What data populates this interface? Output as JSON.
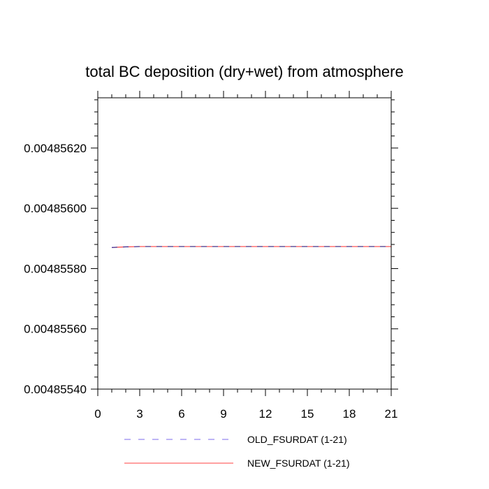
{
  "chart_data": {
    "type": "line",
    "title": "total BC deposition (dry+wet) from atmosphere",
    "xlabel": "",
    "ylabel": "",
    "xlim": [
      0,
      21
    ],
    "ylim": [
      0.0048554,
      0.0048563667
    ],
    "x_ticks": [
      0,
      3,
      6,
      9,
      12,
      15,
      18,
      21
    ],
    "x_tick_labels": [
      "0",
      "3",
      "6",
      "9",
      "12",
      "15",
      "18",
      "21"
    ],
    "y_ticks": [
      0.0048554,
      0.0048556,
      0.0048558,
      0.004856,
      0.0048562
    ],
    "y_tick_labels": [
      "0.00485540",
      "0.00485560",
      "0.00485580",
      "0.00485600",
      "0.00485620"
    ],
    "grid": false,
    "legend_position": "bottom",
    "series": [
      {
        "name": "OLD_FSURDAT (1-21)",
        "color": "#7b68ee",
        "dash": "dashed",
        "x": [
          1,
          2,
          3,
          4,
          5,
          6,
          7,
          8,
          9,
          10,
          11,
          12,
          13,
          14,
          15,
          16,
          17,
          18,
          19,
          20,
          21
        ],
        "values": [
          0.00485587,
          0.004855872,
          0.004855873,
          0.004855873,
          0.004855873,
          0.004855873,
          0.004855873,
          0.004855873,
          0.004855873,
          0.004855873,
          0.004855873,
          0.004855873,
          0.004855873,
          0.004855873,
          0.004855873,
          0.004855873,
          0.004855873,
          0.004855873,
          0.004855873,
          0.004855873,
          0.004855873
        ]
      },
      {
        "name": "NEW_FSURDAT (1-21)",
        "color": "#ff4040",
        "dash": "solid",
        "x": [
          1,
          2,
          3,
          4,
          5,
          6,
          7,
          8,
          9,
          10,
          11,
          12,
          13,
          14,
          15,
          16,
          17,
          18,
          19,
          20,
          21
        ],
        "values": [
          0.00485587,
          0.004855872,
          0.004855873,
          0.004855873,
          0.004855873,
          0.004855873,
          0.004855873,
          0.004855873,
          0.004855873,
          0.004855873,
          0.004855873,
          0.004855873,
          0.004855873,
          0.004855873,
          0.004855873,
          0.004855873,
          0.004855873,
          0.004855873,
          0.004855873,
          0.004855873,
          0.004855873
        ]
      }
    ]
  }
}
